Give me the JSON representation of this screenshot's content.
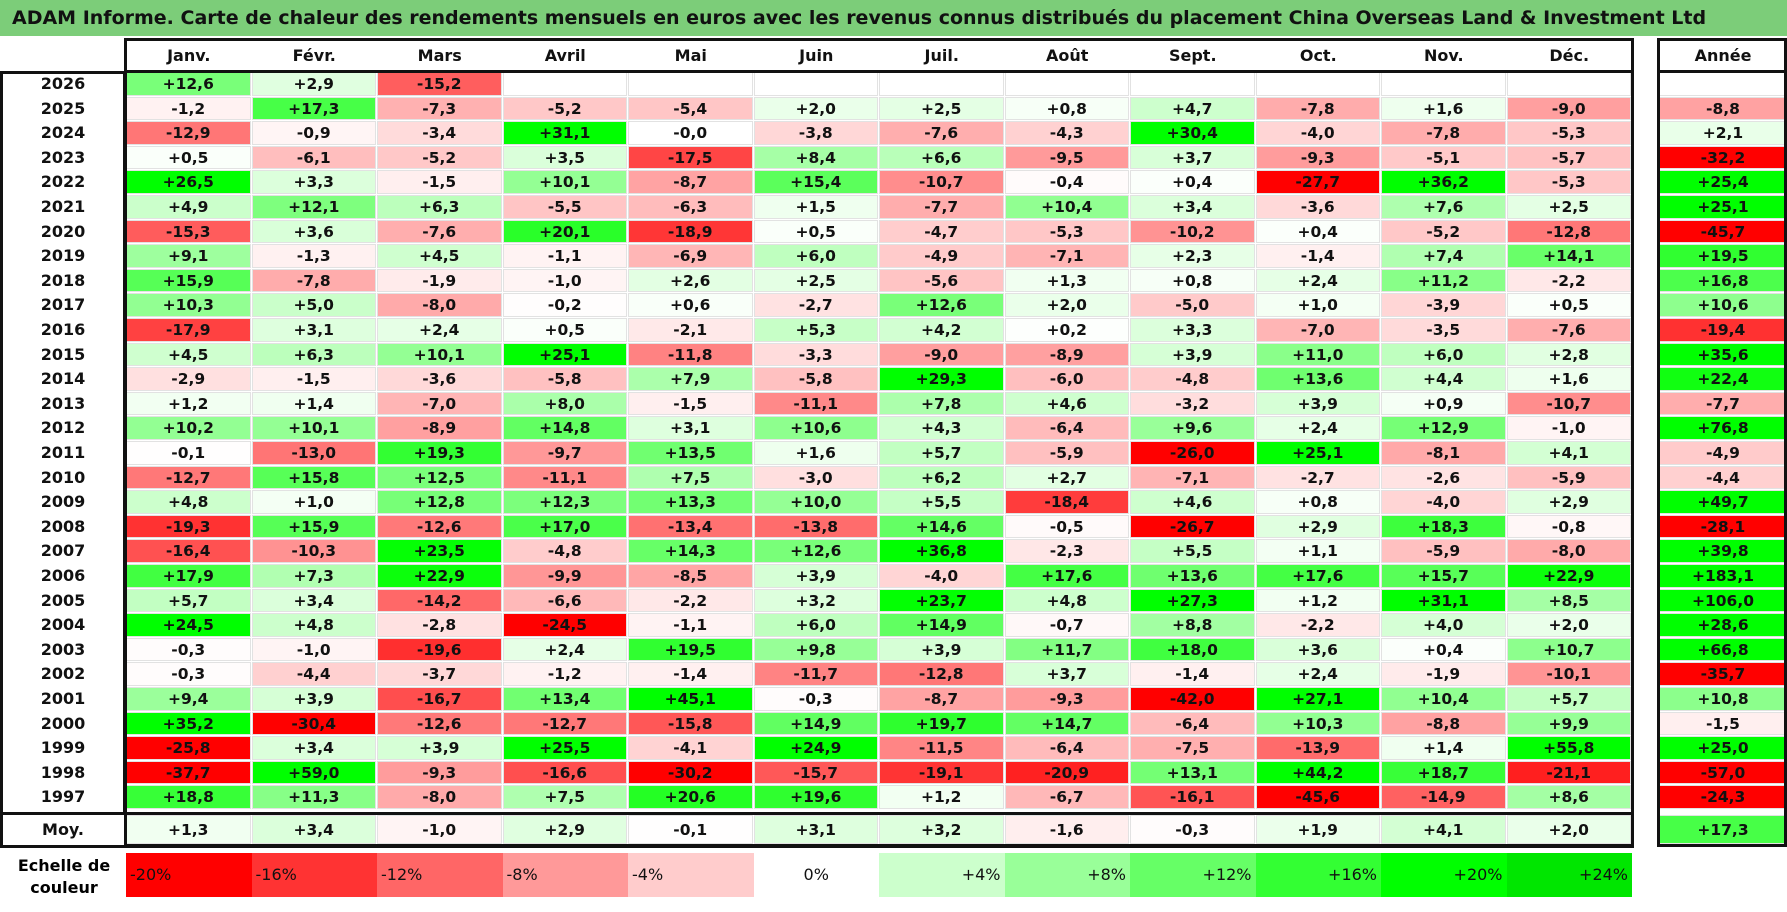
{
  "title": "ADAM Informe. Carte de chaleur des rendements mensuels en euros avec les revenus connus distribués du placement China Overseas Land & Investment Ltd",
  "chart_data": {
    "type": "heatmap",
    "months": [
      "Janv.",
      "Févr.",
      "Mars",
      "Avril",
      "Mai",
      "Juin",
      "Juil.",
      "Août",
      "Sept.",
      "Oct.",
      "Nov.",
      "Déc."
    ],
    "year_header": "Année",
    "average_label": "Moy.",
    "rows": [
      {
        "year": "2026",
        "months": [
          "+12,6",
          "+2,9",
          "-15,2",
          "",
          "",
          "",
          "",
          "",
          "",
          "",
          "",
          ""
        ],
        "annual": ""
      },
      {
        "year": "2025",
        "months": [
          "-1,2",
          "+17,3",
          "-7,3",
          "-5,2",
          "-5,4",
          "+2,0",
          "+2,5",
          "+0,8",
          "+4,7",
          "-7,8",
          "+1,6",
          "-9,0"
        ],
        "annual": "-8,8"
      },
      {
        "year": "2024",
        "months": [
          "-12,9",
          "-0,9",
          "-3,4",
          "+31,1",
          "-0,0",
          "-3,8",
          "-7,6",
          "-4,3",
          "+30,4",
          "-4,0",
          "-7,8",
          "-5,3"
        ],
        "annual": "+2,1"
      },
      {
        "year": "2023",
        "months": [
          "+0,5",
          "-6,1",
          "-5,2",
          "+3,5",
          "-17,5",
          "+8,4",
          "+6,6",
          "-9,5",
          "+3,7",
          "-9,3",
          "-5,1",
          "-5,7"
        ],
        "annual": "-32,2"
      },
      {
        "year": "2022",
        "months": [
          "+26,5",
          "+3,3",
          "-1,5",
          "+10,1",
          "-8,7",
          "+15,4",
          "-10,7",
          "-0,4",
          "+0,4",
          "-27,7",
          "+36,2",
          "-5,3"
        ],
        "annual": "+25,4"
      },
      {
        "year": "2021",
        "months": [
          "+4,9",
          "+12,1",
          "+6,3",
          "-5,5",
          "-6,3",
          "+1,5",
          "-7,7",
          "+10,4",
          "+3,4",
          "-3,6",
          "+7,6",
          "+2,5"
        ],
        "annual": "+25,1"
      },
      {
        "year": "2020",
        "months": [
          "-15,3",
          "+3,6",
          "-7,6",
          "+20,1",
          "-18,9",
          "+0,5",
          "-4,7",
          "-5,3",
          "-10,2",
          "+0,4",
          "-5,2",
          "-12,8"
        ],
        "annual": "-45,7"
      },
      {
        "year": "2019",
        "months": [
          "+9,1",
          "-1,3",
          "+4,5",
          "-1,1",
          "-6,9",
          "+6,0",
          "-4,9",
          "-7,1",
          "+2,3",
          "-1,4",
          "+7,4",
          "+14,1"
        ],
        "annual": "+19,5"
      },
      {
        "year": "2018",
        "months": [
          "+15,9",
          "-7,8",
          "-1,9",
          "-1,0",
          "+2,6",
          "+2,5",
          "-5,6",
          "+1,3",
          "+0,8",
          "+2,4",
          "+11,2",
          "-2,2"
        ],
        "annual": "+16,8"
      },
      {
        "year": "2017",
        "months": [
          "+10,3",
          "+5,0",
          "-8,0",
          "-0,2",
          "+0,6",
          "-2,7",
          "+12,6",
          "+2,0",
          "-5,0",
          "+1,0",
          "-3,9",
          "+0,5"
        ],
        "annual": "+10,6"
      },
      {
        "year": "2016",
        "months": [
          "-17,9",
          "+3,1",
          "+2,4",
          "+0,5",
          "-2,1",
          "+5,3",
          "+4,2",
          "+0,2",
          "+3,3",
          "-7,0",
          "-3,5",
          "-7,6"
        ],
        "annual": "-19,4"
      },
      {
        "year": "2015",
        "months": [
          "+4,5",
          "+6,3",
          "+10,1",
          "+25,1",
          "-11,8",
          "-3,3",
          "-9,0",
          "-8,9",
          "+3,9",
          "+11,0",
          "+6,0",
          "+2,8"
        ],
        "annual": "+35,6"
      },
      {
        "year": "2014",
        "months": [
          "-2,9",
          "-1,5",
          "-3,6",
          "-5,8",
          "+7,9",
          "-5,8",
          "+29,3",
          "-6,0",
          "-4,8",
          "+13,6",
          "+4,4",
          "+1,6"
        ],
        "annual": "+22,4"
      },
      {
        "year": "2013",
        "months": [
          "+1,2",
          "+1,4",
          "-7,0",
          "+8,0",
          "-1,5",
          "-11,1",
          "+7,8",
          "+4,6",
          "-3,2",
          "+3,9",
          "+0,9",
          "-10,7"
        ],
        "annual": "-7,7"
      },
      {
        "year": "2012",
        "months": [
          "+10,2",
          "+10,1",
          "-8,9",
          "+14,8",
          "+3,1",
          "+10,6",
          "+4,3",
          "-6,4",
          "+9,6",
          "+2,4",
          "+12,9",
          "-1,0"
        ],
        "annual": "+76,8"
      },
      {
        "year": "2011",
        "months": [
          "-0,1",
          "-13,0",
          "+19,3",
          "-9,7",
          "+13,5",
          "+1,6",
          "+5,7",
          "-5,9",
          "-26,0",
          "+25,1",
          "-8,1",
          "+4,1"
        ],
        "annual": "-4,9"
      },
      {
        "year": "2010",
        "months": [
          "-12,7",
          "+15,8",
          "+12,5",
          "-11,1",
          "+7,5",
          "-3,0",
          "+6,2",
          "+2,7",
          "-7,1",
          "-2,7",
          "-2,6",
          "-5,9"
        ],
        "annual": "-4,4"
      },
      {
        "year": "2009",
        "months": [
          "+4,8",
          "+1,0",
          "+12,8",
          "+12,3",
          "+13,3",
          "+10,0",
          "+5,5",
          "-18,4",
          "+4,6",
          "+0,8",
          "-4,0",
          "+2,9"
        ],
        "annual": "+49,7"
      },
      {
        "year": "2008",
        "months": [
          "-19,3",
          "+15,9",
          "-12,6",
          "+17,0",
          "-13,4",
          "-13,8",
          "+14,6",
          "-0,5",
          "-26,7",
          "+2,9",
          "+18,3",
          "-0,8"
        ],
        "annual": "-28,1"
      },
      {
        "year": "2007",
        "months": [
          "-16,4",
          "-10,3",
          "+23,5",
          "-4,8",
          "+14,3",
          "+12,6",
          "+36,8",
          "-2,3",
          "+5,5",
          "+1,1",
          "-5,9",
          "-8,0"
        ],
        "annual": "+39,8"
      },
      {
        "year": "2006",
        "months": [
          "+17,9",
          "+7,3",
          "+22,9",
          "-9,9",
          "-8,5",
          "+3,9",
          "-4,0",
          "+17,6",
          "+13,6",
          "+17,6",
          "+15,7",
          "+22,9"
        ],
        "annual": "+183,1"
      },
      {
        "year": "2005",
        "months": [
          "+5,7",
          "+3,4",
          "-14,2",
          "-6,6",
          "-2,2",
          "+3,2",
          "+23,7",
          "+4,8",
          "+27,3",
          "+1,2",
          "+31,1",
          "+8,5"
        ],
        "annual": "+106,0"
      },
      {
        "year": "2004",
        "months": [
          "+24,5",
          "+4,8",
          "-2,8",
          "-24,5",
          "-1,1",
          "+6,0",
          "+14,9",
          "-0,7",
          "+8,8",
          "-2,2",
          "+4,0",
          "+2,0"
        ],
        "annual": "+28,6"
      },
      {
        "year": "2003",
        "months": [
          "-0,3",
          "-1,0",
          "-19,6",
          "+2,4",
          "+19,5",
          "+9,8",
          "+3,9",
          "+11,7",
          "+18,0",
          "+3,6",
          "+0,4",
          "+10,7"
        ],
        "annual": "+66,8"
      },
      {
        "year": "2002",
        "months": [
          "-0,3",
          "-4,4",
          "-3,7",
          "-1,2",
          "-1,4",
          "-11,7",
          "-12,8",
          "+3,7",
          "-1,4",
          "+2,4",
          "-1,9",
          "-10,1"
        ],
        "annual": "-35,7"
      },
      {
        "year": "2001",
        "months": [
          "+9,4",
          "+3,9",
          "-16,7",
          "+13,4",
          "+45,1",
          "-0,3",
          "-8,7",
          "-9,3",
          "-42,0",
          "+27,1",
          "+10,4",
          "+5,7"
        ],
        "annual": "+10,8"
      },
      {
        "year": "2000",
        "months": [
          "+35,2",
          "-30,4",
          "-12,6",
          "-12,7",
          "-15,8",
          "+14,9",
          "+19,7",
          "+14,7",
          "-6,4",
          "+10,3",
          "-8,8",
          "+9,9"
        ],
        "annual": "-1,5"
      },
      {
        "year": "1999",
        "months": [
          "-25,8",
          "+3,4",
          "+3,9",
          "+25,5",
          "-4,1",
          "+24,9",
          "-11,5",
          "-6,4",
          "-7,5",
          "-13,9",
          "+1,4",
          "+55,8"
        ],
        "annual": "+25,0"
      },
      {
        "year": "1998",
        "months": [
          "-37,7",
          "+59,0",
          "-9,3",
          "-16,6",
          "-30,2",
          "-15,7",
          "-19,1",
          "-20,9",
          "+13,1",
          "+44,2",
          "+18,7",
          "-21,1"
        ],
        "annual": "-57,0"
      },
      {
        "year": "1997",
        "months": [
          "+18,8",
          "+11,3",
          "-8,0",
          "+7,5",
          "+20,6",
          "+19,6",
          "+1,2",
          "-6,7",
          "-16,1",
          "-45,6",
          "-14,9",
          "+8,6"
        ],
        "annual": "-24,3"
      }
    ],
    "average": {
      "months": [
        "+1,3",
        "+3,4",
        "-1,0",
        "+2,9",
        "-0,1",
        "+3,1",
        "+3,2",
        "-1,6",
        "-0,3",
        "+1,9",
        "+4,1",
        "+2,0"
      ],
      "annual": "+17,3"
    },
    "legend": {
      "label_line1": "Echelle de",
      "label_line2": "couleur",
      "steps": [
        {
          "text": "-20%",
          "color": "#ff0000",
          "align": "left"
        },
        {
          "text": "-16%",
          "color": "#ff3333",
          "align": "left"
        },
        {
          "text": "-12%",
          "color": "#ff6666",
          "align": "left"
        },
        {
          "text": "-8%",
          "color": "#ff9999",
          "align": "left"
        },
        {
          "text": "-4%",
          "color": "#ffcccc",
          "align": "left"
        },
        {
          "text": "0%",
          "color": "#ffffff",
          "align": "center"
        },
        {
          "text": "+4%",
          "color": "#ccffcc",
          "align": "right"
        },
        {
          "text": "+8%",
          "color": "#99ff99",
          "align": "right"
        },
        {
          "text": "+12%",
          "color": "#66ff66",
          "align": "right"
        },
        {
          "text": "+16%",
          "color": "#33ff33",
          "align": "right"
        },
        {
          "text": "+20%",
          "color": "#00ff00",
          "align": "right"
        },
        {
          "text": "+24%",
          "color": "#00e600",
          "align": "right"
        }
      ]
    }
  }
}
